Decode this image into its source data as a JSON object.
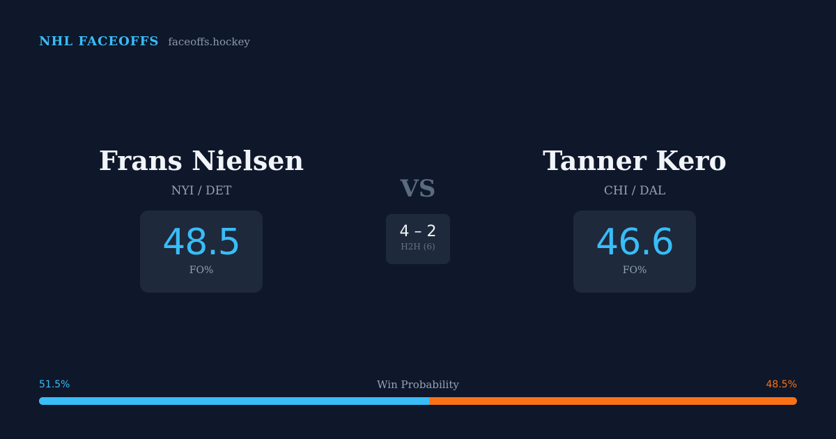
{
  "brand": {
    "name": "NHL FACEOFFS",
    "site": "faceoffs.hockey"
  },
  "players": [
    {
      "name": "Frans Nielsen",
      "teams": "NYI / DET",
      "fo_pct": "48.5",
      "fo_label": "FO%"
    },
    {
      "name": "Tanner Kero",
      "teams": "CHI / DAL",
      "fo_pct": "46.6",
      "fo_label": "FO%"
    }
  ],
  "vs": "VS",
  "h2h": {
    "score": "4 – 2",
    "label": "H2H (6)"
  },
  "win_probability": {
    "title": "Win Probability",
    "left_label": "51.5%",
    "right_label": "48.5%",
    "left_fraction": 0.515,
    "left_color": "#38bdf8",
    "right_color": "#f97316"
  }
}
